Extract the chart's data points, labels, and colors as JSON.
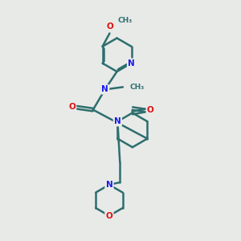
{
  "background_color": "#e8eae8",
  "bond_color": "#2d6e6e",
  "N_color": "#1a1aee",
  "O_color": "#dd1111",
  "bond_width": 1.8,
  "figsize": [
    3.0,
    3.0
  ],
  "dpi": 100,
  "xlim": [
    0,
    10
  ],
  "ylim": [
    0,
    10
  ]
}
